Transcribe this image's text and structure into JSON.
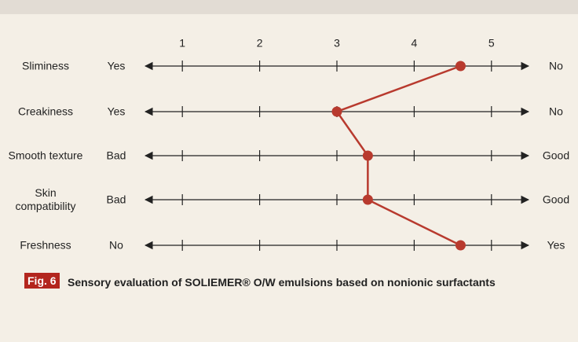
{
  "chart_data": {
    "type": "line",
    "categories": [
      "Sliminess",
      "Creakiness",
      "Smooth texture",
      "Skin compatibility",
      "Freshness"
    ],
    "left_anchors": [
      "Yes",
      "Yes",
      "Bad",
      "Bad",
      "No"
    ],
    "right_anchors": [
      "No",
      "No",
      "Good",
      "Good",
      "Yes"
    ],
    "values": [
      4.6,
      3.0,
      3.4,
      3.4,
      4.6
    ],
    "color": "#b83a2e",
    "xlim": [
      0.5,
      5.5
    ],
    "xticks": [
      1,
      2,
      3,
      4,
      5
    ],
    "caption_label": "Fig. 6",
    "caption": "Sensory evaluation of SOLIEMER® O/W emulsions based on nonionic surfactants"
  }
}
